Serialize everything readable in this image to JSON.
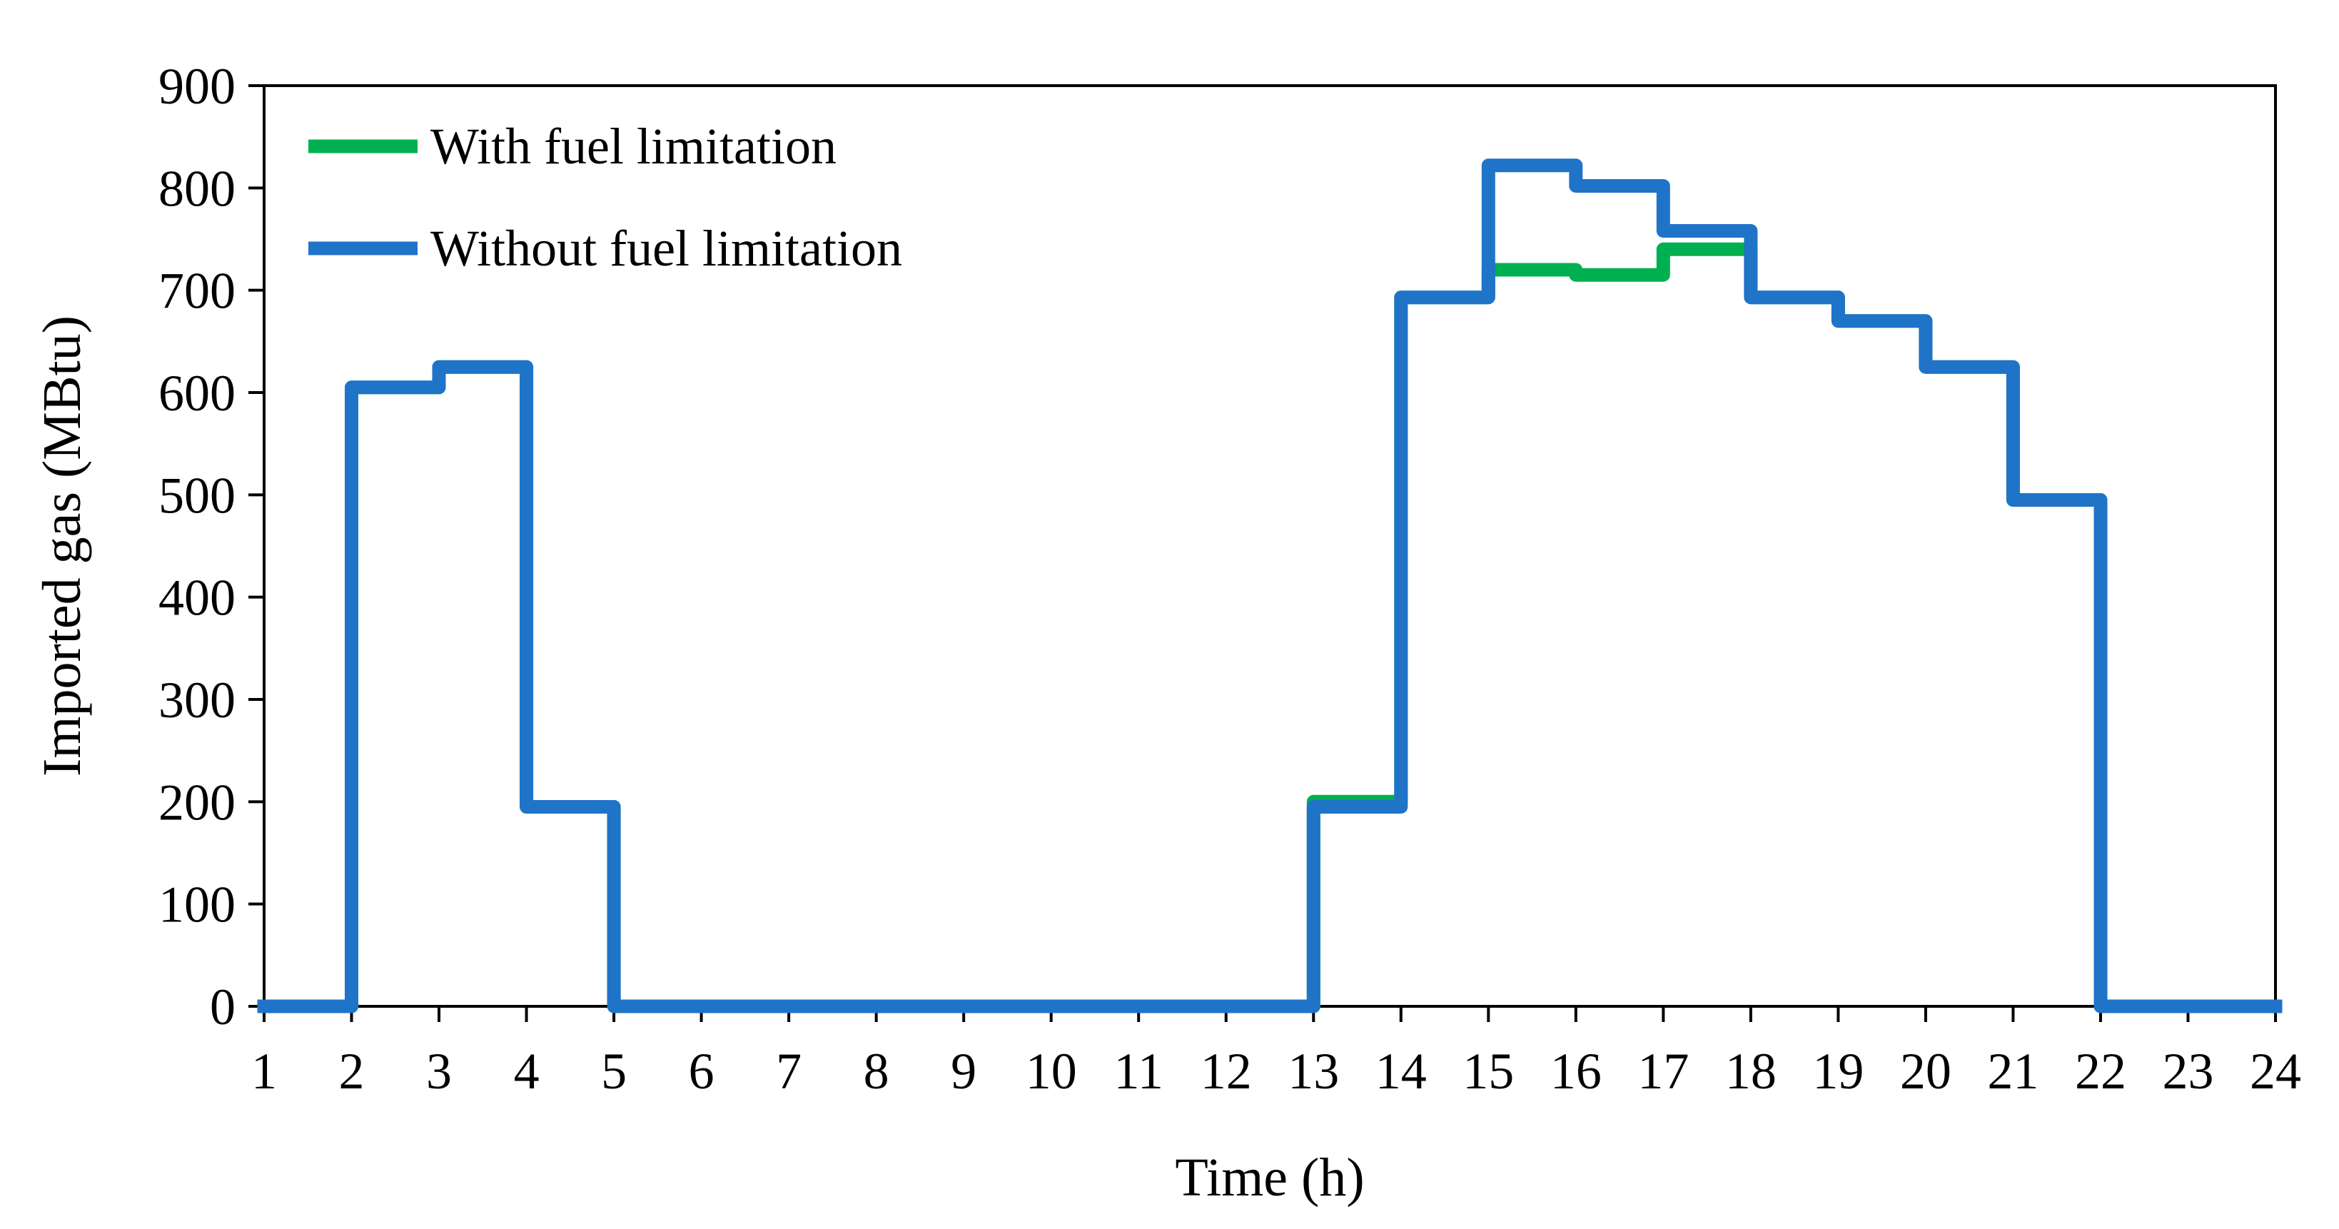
{
  "chart_data": {
    "type": "line",
    "step": "post",
    "title": "",
    "xlabel": "Time (h)",
    "ylabel": "Imported gas (MBtu)",
    "xlim": [
      1,
      24
    ],
    "ylim": [
      0,
      900
    ],
    "x_ticks": [
      "1",
      "2",
      "3",
      "4",
      "5",
      "6",
      "7",
      "8",
      "9",
      "10",
      "11",
      "12",
      "13",
      "14",
      "15",
      "16",
      "17",
      "18",
      "19",
      "20",
      "21",
      "22",
      "23",
      "24"
    ],
    "y_ticks": [
      "0",
      "100",
      "200",
      "300",
      "400",
      "500",
      "600",
      "700",
      "800",
      "900"
    ],
    "grid": false,
    "legend_position": "top-left",
    "x": [
      1,
      2,
      3,
      4,
      5,
      6,
      7,
      8,
      9,
      10,
      11,
      12,
      13,
      14,
      15,
      16,
      17,
      18,
      19,
      20,
      21,
      22,
      23,
      24
    ],
    "series": [
      {
        "name": "With fuel limitation",
        "color": "#00b050",
        "values": [
          0,
          605,
          625,
          195,
          0,
          0,
          0,
          0,
          0,
          0,
          0,
          0,
          200,
          693,
          720,
          715,
          740,
          693,
          670,
          625,
          495,
          0,
          0,
          0
        ]
      },
      {
        "name": "Without fuel limitation",
        "color": "#1f74c8",
        "values": [
          0,
          605,
          625,
          195,
          0,
          0,
          0,
          0,
          0,
          0,
          0,
          0,
          195,
          693,
          822,
          802,
          758,
          693,
          670,
          625,
          495,
          0,
          0,
          0
        ]
      }
    ]
  }
}
